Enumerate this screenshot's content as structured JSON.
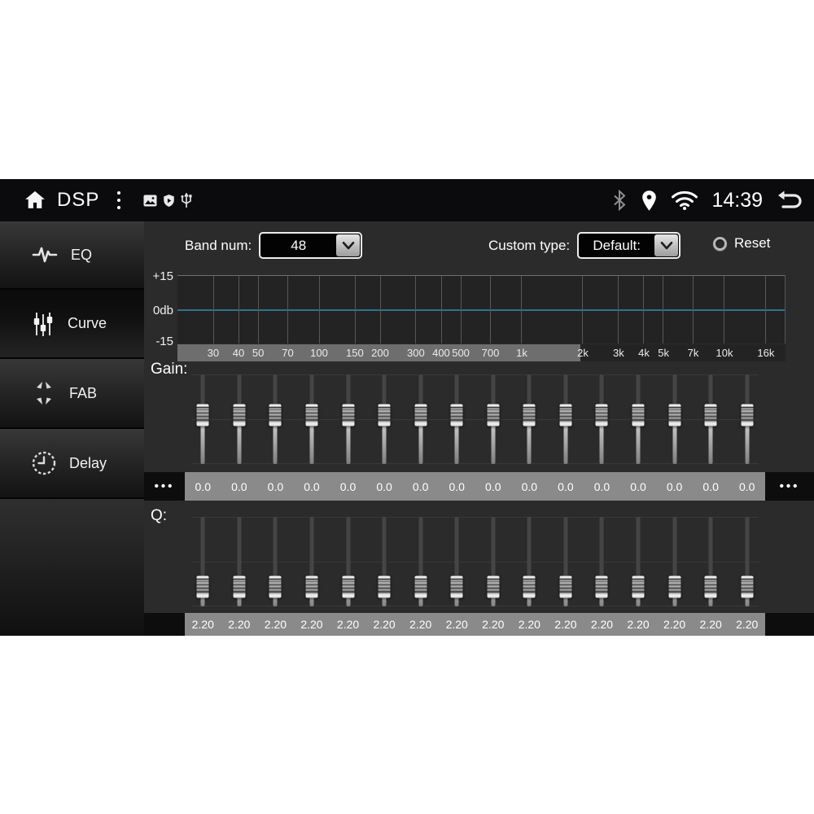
{
  "topbar": {
    "title": "DSP",
    "time": "14:39",
    "left_icons": [
      "home",
      "overflow-menu",
      "gallery",
      "shield",
      "usb"
    ],
    "right_icons": [
      "bluetooth",
      "location",
      "wifi",
      "back"
    ]
  },
  "sidebar": {
    "items": [
      {
        "label": "EQ",
        "icon": "waveform-icon",
        "active": false
      },
      {
        "label": "Curve",
        "icon": "sliders-icon",
        "active": true
      },
      {
        "label": "FAB",
        "icon": "fab-arrows-icon",
        "active": false
      },
      {
        "label": "Delay",
        "icon": "clock-icon",
        "active": false
      }
    ]
  },
  "controls": {
    "band_num_label": "Band num:",
    "band_num_value": "48",
    "custom_type_label": "Custom type:",
    "custom_type_value": "Default:",
    "reset_label": "Reset"
  },
  "graph": {
    "y_labels": [
      "+15",
      "0db",
      "-15"
    ],
    "freqs": [
      {
        "hz": 30,
        "label": "30"
      },
      {
        "hz": 40,
        "label": "40"
      },
      {
        "hz": 50,
        "label": "50"
      },
      {
        "hz": 70,
        "label": "70"
      },
      {
        "hz": 100,
        "label": "100"
      },
      {
        "hz": 150,
        "label": "150"
      },
      {
        "hz": 200,
        "label": "200"
      },
      {
        "hz": 300,
        "label": "300"
      },
      {
        "hz": 400,
        "label": "400"
      },
      {
        "hz": 500,
        "label": "500"
      },
      {
        "hz": 700,
        "label": "700"
      },
      {
        "hz": 1000,
        "label": "1k"
      },
      {
        "hz": 2000,
        "label": "2k"
      },
      {
        "hz": 3000,
        "label": "3k"
      },
      {
        "hz": 4000,
        "label": "4k"
      },
      {
        "hz": 5000,
        "label": "5k"
      },
      {
        "hz": 7000,
        "label": "7k"
      },
      {
        "hz": 10000,
        "label": "10k"
      },
      {
        "hz": 16000,
        "label": "16k"
      }
    ],
    "curve_value_db": 0
  },
  "gain": {
    "label": "Gain:",
    "values": [
      "0.0",
      "0.0",
      "0.0",
      "0.0",
      "0.0",
      "0.0",
      "0.0",
      "0.0",
      "0.0",
      "0.0",
      "0.0",
      "0.0",
      "0.0",
      "0.0",
      "0.0",
      "0.0"
    ],
    "thumb_pct": 46,
    "more_indicator": "•••"
  },
  "q": {
    "label": "Q:",
    "values": [
      "2.20",
      "2.20",
      "2.20",
      "2.20",
      "2.20",
      "2.20",
      "2.20",
      "2.20",
      "2.20",
      "2.20",
      "2.20",
      "2.20",
      "2.20",
      "2.20",
      "2.20",
      "2.20"
    ],
    "thumb_pct": 76
  },
  "colors": {
    "topbar_bg": "#0b0b0e",
    "content_bg": "#2b2b2b",
    "plot_bg": "#232323",
    "grid_line": "#585858",
    "zero_line": "#2e7191",
    "freq_strip_highlight": "#6e6e6e",
    "value_strip": "#8a8a8a",
    "text": "#ffffff"
  }
}
